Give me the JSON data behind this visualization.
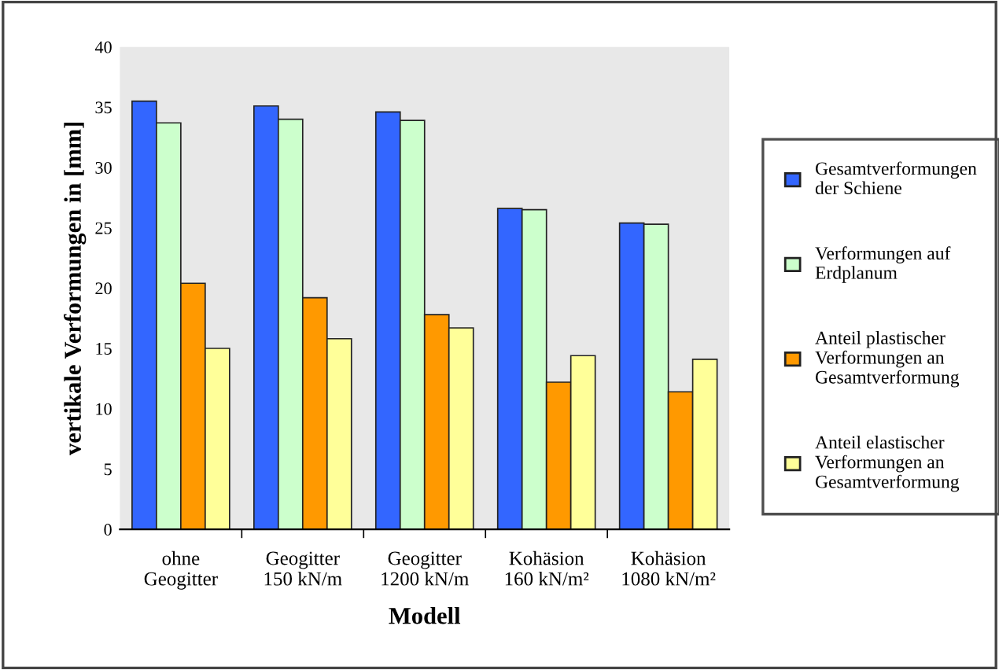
{
  "chart_data": {
    "type": "bar",
    "xlabel": "Modell",
    "ylabel": "vertikale Verformungen in [mm]",
    "categories": [
      "ohne\nGeogitter",
      "Geogitter\n150 kN/m",
      "Geogitter\n1200 kN/m",
      "Kohäsion\n160 kN/m²",
      "Kohäsion\n1080 kN/m²"
    ],
    "series": [
      {
        "name": "Gesamtverformungen\nder Schiene",
        "color": "#3366ff",
        "values": [
          35.5,
          35.1,
          34.6,
          26.6,
          25.4
        ]
      },
      {
        "name": "Verformungen auf\nErdplanum",
        "color": "#ccffcc",
        "values": [
          33.7,
          34.0,
          33.9,
          26.5,
          25.3
        ]
      },
      {
        "name": "Anteil plastischer\nVerformungen an\nGesamtverformung",
        "color": "#ff9900",
        "values": [
          20.4,
          19.2,
          17.8,
          12.2,
          11.4
        ]
      },
      {
        "name": "Anteil elastischer\nVerformungen an\nGesamtverformung",
        "color": "#ffff99",
        "values": [
          15.0,
          15.8,
          16.7,
          14.4,
          14.1
        ]
      }
    ],
    "ylim": [
      0,
      40
    ],
    "yticks": [
      0,
      5,
      10,
      15,
      20,
      25,
      30,
      35,
      40
    ],
    "grid": false,
    "legend": "right"
  }
}
